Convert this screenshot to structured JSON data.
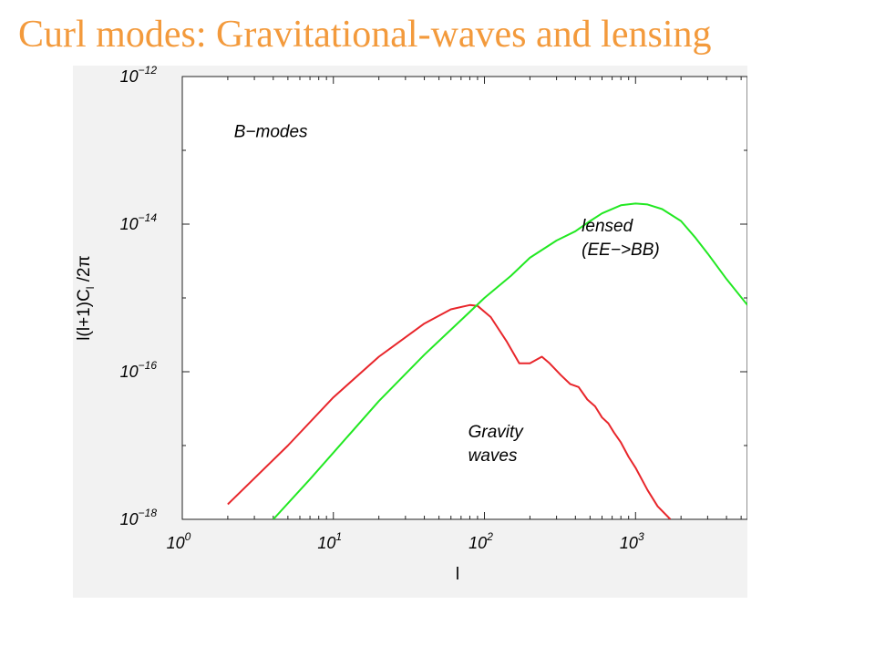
{
  "slide": {
    "title": "Curl modes: Gravitational-waves and lensing",
    "title_color": "#f39a3c"
  },
  "chart_data": {
    "type": "line",
    "title": "",
    "xlabel": "l",
    "ylabel": "l(l+1)C_l /2π",
    "xscale": "log",
    "yscale": "log",
    "xlim": [
      1,
      5500
    ],
    "ylim": [
      1e-18,
      1e-12
    ],
    "x_ticks": [
      {
        "base": "10",
        "exp": "0",
        "value": 1
      },
      {
        "base": "10",
        "exp": "1",
        "value": 10
      },
      {
        "base": "10",
        "exp": "2",
        "value": 100
      },
      {
        "base": "10",
        "exp": "3",
        "value": 1000
      }
    ],
    "y_ticks": [
      {
        "base": "10",
        "exp": "−12",
        "value": 1e-12
      },
      {
        "base": "10",
        "exp": "−14",
        "value": 1e-14
      },
      {
        "base": "10",
        "exp": "−16",
        "value": 1e-16
      },
      {
        "base": "10",
        "exp": "−18",
        "value": 1e-18
      }
    ],
    "annotations": [
      {
        "lines": [
          "B−modes"
        ],
        "x": 2.2,
        "y": 1.5e-13
      },
      {
        "lines": [
          "lensed",
          "(EE−>BB)"
        ],
        "x": 440,
        "y": 8e-15
      },
      {
        "lines": [
          "Gravity",
          "waves"
        ],
        "x": 78,
        "y": 1.3e-17
      }
    ],
    "series": [
      {
        "color": "#e8262b",
        "points": [
          [
            2,
            1.6e-18
          ],
          [
            5,
            1e-17
          ],
          [
            10,
            4.5e-17
          ],
          [
            20,
            1.6e-16
          ],
          [
            40,
            4.5e-16
          ],
          [
            60,
            7e-16
          ],
          [
            80,
            8e-16
          ],
          [
            90,
            7.8e-16
          ],
          [
            110,
            5.5e-16
          ],
          [
            140,
            2.6e-16
          ],
          [
            170,
            1.3e-16
          ],
          [
            200,
            1.3e-16
          ],
          [
            240,
            1.6e-16
          ],
          [
            270,
            1.3e-16
          ],
          [
            320,
            9e-17
          ],
          [
            370,
            6.8e-17
          ],
          [
            420,
            6.2e-17
          ],
          [
            480,
            4.2e-17
          ],
          [
            540,
            3.4e-17
          ],
          [
            600,
            2.4e-17
          ],
          [
            660,
            2e-17
          ],
          [
            720,
            1.5e-17
          ],
          [
            800,
            1.1e-17
          ],
          [
            900,
            7e-18
          ],
          [
            1000,
            5e-18
          ],
          [
            1200,
            2.5e-18
          ],
          [
            1400,
            1.5e-18
          ],
          [
            1700,
            1e-18
          ]
        ]
      },
      {
        "color": "#22e822",
        "points": [
          [
            4,
            1e-18
          ],
          [
            7,
            3.5e-18
          ],
          [
            10,
            8e-18
          ],
          [
            20,
            4e-17
          ],
          [
            40,
            1.7e-16
          ],
          [
            70,
            5e-16
          ],
          [
            100,
            1e-15
          ],
          [
            150,
            2e-15
          ],
          [
            200,
            3.5e-15
          ],
          [
            300,
            6e-15
          ],
          [
            400,
            8e-15
          ],
          [
            500,
            1.1e-14
          ],
          [
            600,
            1.4e-14
          ],
          [
            800,
            1.8e-14
          ],
          [
            1000,
            1.9e-14
          ],
          [
            1200,
            1.85e-14
          ],
          [
            1500,
            1.6e-14
          ],
          [
            2000,
            1.1e-14
          ],
          [
            2500,
            6.5e-15
          ],
          [
            3000,
            4e-15
          ],
          [
            4000,
            1.8e-15
          ],
          [
            5500,
            8e-16
          ]
        ]
      }
    ]
  }
}
